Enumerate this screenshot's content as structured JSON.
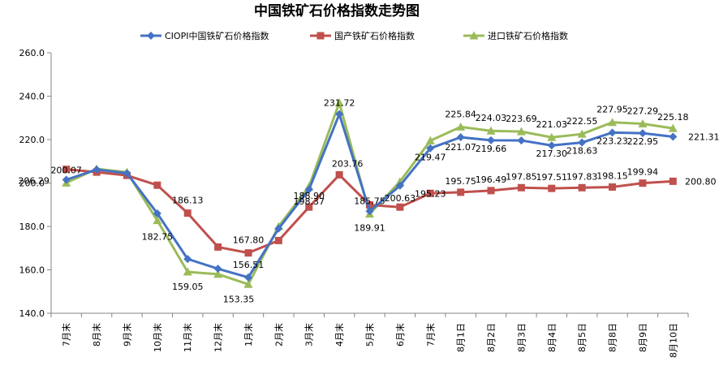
{
  "chart_data": {
    "type": "line",
    "title": "中国铁矿石价格指数走势图",
    "categories": [
      "7月末",
      "8月末",
      "9月末",
      "10月末",
      "11月末",
      "12月末",
      "1月末",
      "2月末",
      "3月末",
      "4月末",
      "5月末",
      "6月末",
      "7月末",
      "8月1日",
      "8月2日",
      "8月3日",
      "8月4日",
      "8月5日",
      "8月8日",
      "8月9日",
      "8月10日"
    ],
    "ylim": [
      140,
      260
    ],
    "yticks": [
      "140.0",
      "160.0",
      "180.0",
      "200.0",
      "220.0",
      "240.0",
      "260.0"
    ],
    "legend_position": "top-center",
    "grid": false,
    "series": [
      {
        "name": "CIOPI中国铁矿石价格指数",
        "color": "#4472C4",
        "marker": "diamond",
        "values": [
          201.5,
          206.2,
          204.5,
          186.0,
          165.0,
          160.5,
          156.51,
          179.0,
          197.0,
          231.72,
          187.0,
          198.77,
          216.0,
          221.07,
          219.66,
          219.6,
          217.3,
          218.63,
          223.23,
          222.95,
          221.31
        ],
        "labels": [
          "",
          "",
          "",
          "",
          "",
          "",
          "156.51",
          "",
          "",
          "231.72",
          "",
          "",
          "",
          "221.07",
          "219.66",
          "",
          "217.30",
          "218.63",
          "223.23",
          "222.95",
          "221.31"
        ]
      },
      {
        "name": "国产铁矿石价格指数",
        "color": "#C0504D",
        "marker": "square",
        "values": [
          206.29,
          205.0,
          203.5,
          199.0,
          186.13,
          170.5,
          167.8,
          173.5,
          188.9,
          203.76,
          189.91,
          188.9,
          195.23,
          195.75,
          196.49,
          197.85,
          197.51,
          197.83,
          198.15,
          199.94,
          200.8
        ],
        "labels": [
          "206.29",
          "",
          "",
          "",
          "186.13",
          "",
          "167.80",
          "",
          "188.90",
          "203.76",
          "189.91",
          "",
          "195.23",
          "195.75",
          "196.49",
          "197.85",
          "197.51",
          "197.83",
          "198.15",
          "199.94",
          "200.80"
        ]
      },
      {
        "name": "进口铁矿石价格指数",
        "color": "#9BBB59",
        "marker": "triangle",
        "values": [
          200.07,
          206.5,
          205.0,
          182.75,
          159.05,
          158.0,
          153.35,
          180.0,
          198.37,
          237.0,
          185.75,
          200.63,
          219.47,
          225.84,
          224.03,
          223.69,
          221.03,
          222.55,
          227.95,
          227.29,
          225.18
        ],
        "labels": [
          "200.07",
          "",
          "",
          "182.75",
          "159.05",
          "",
          "153.35",
          "",
          "198.37",
          "",
          "185.75",
          "200.63",
          "219.47",
          "225.84",
          "224.03",
          "223.69",
          "221.03",
          "222.55",
          "227.95",
          "227.29",
          "225.18"
        ]
      }
    ]
  }
}
